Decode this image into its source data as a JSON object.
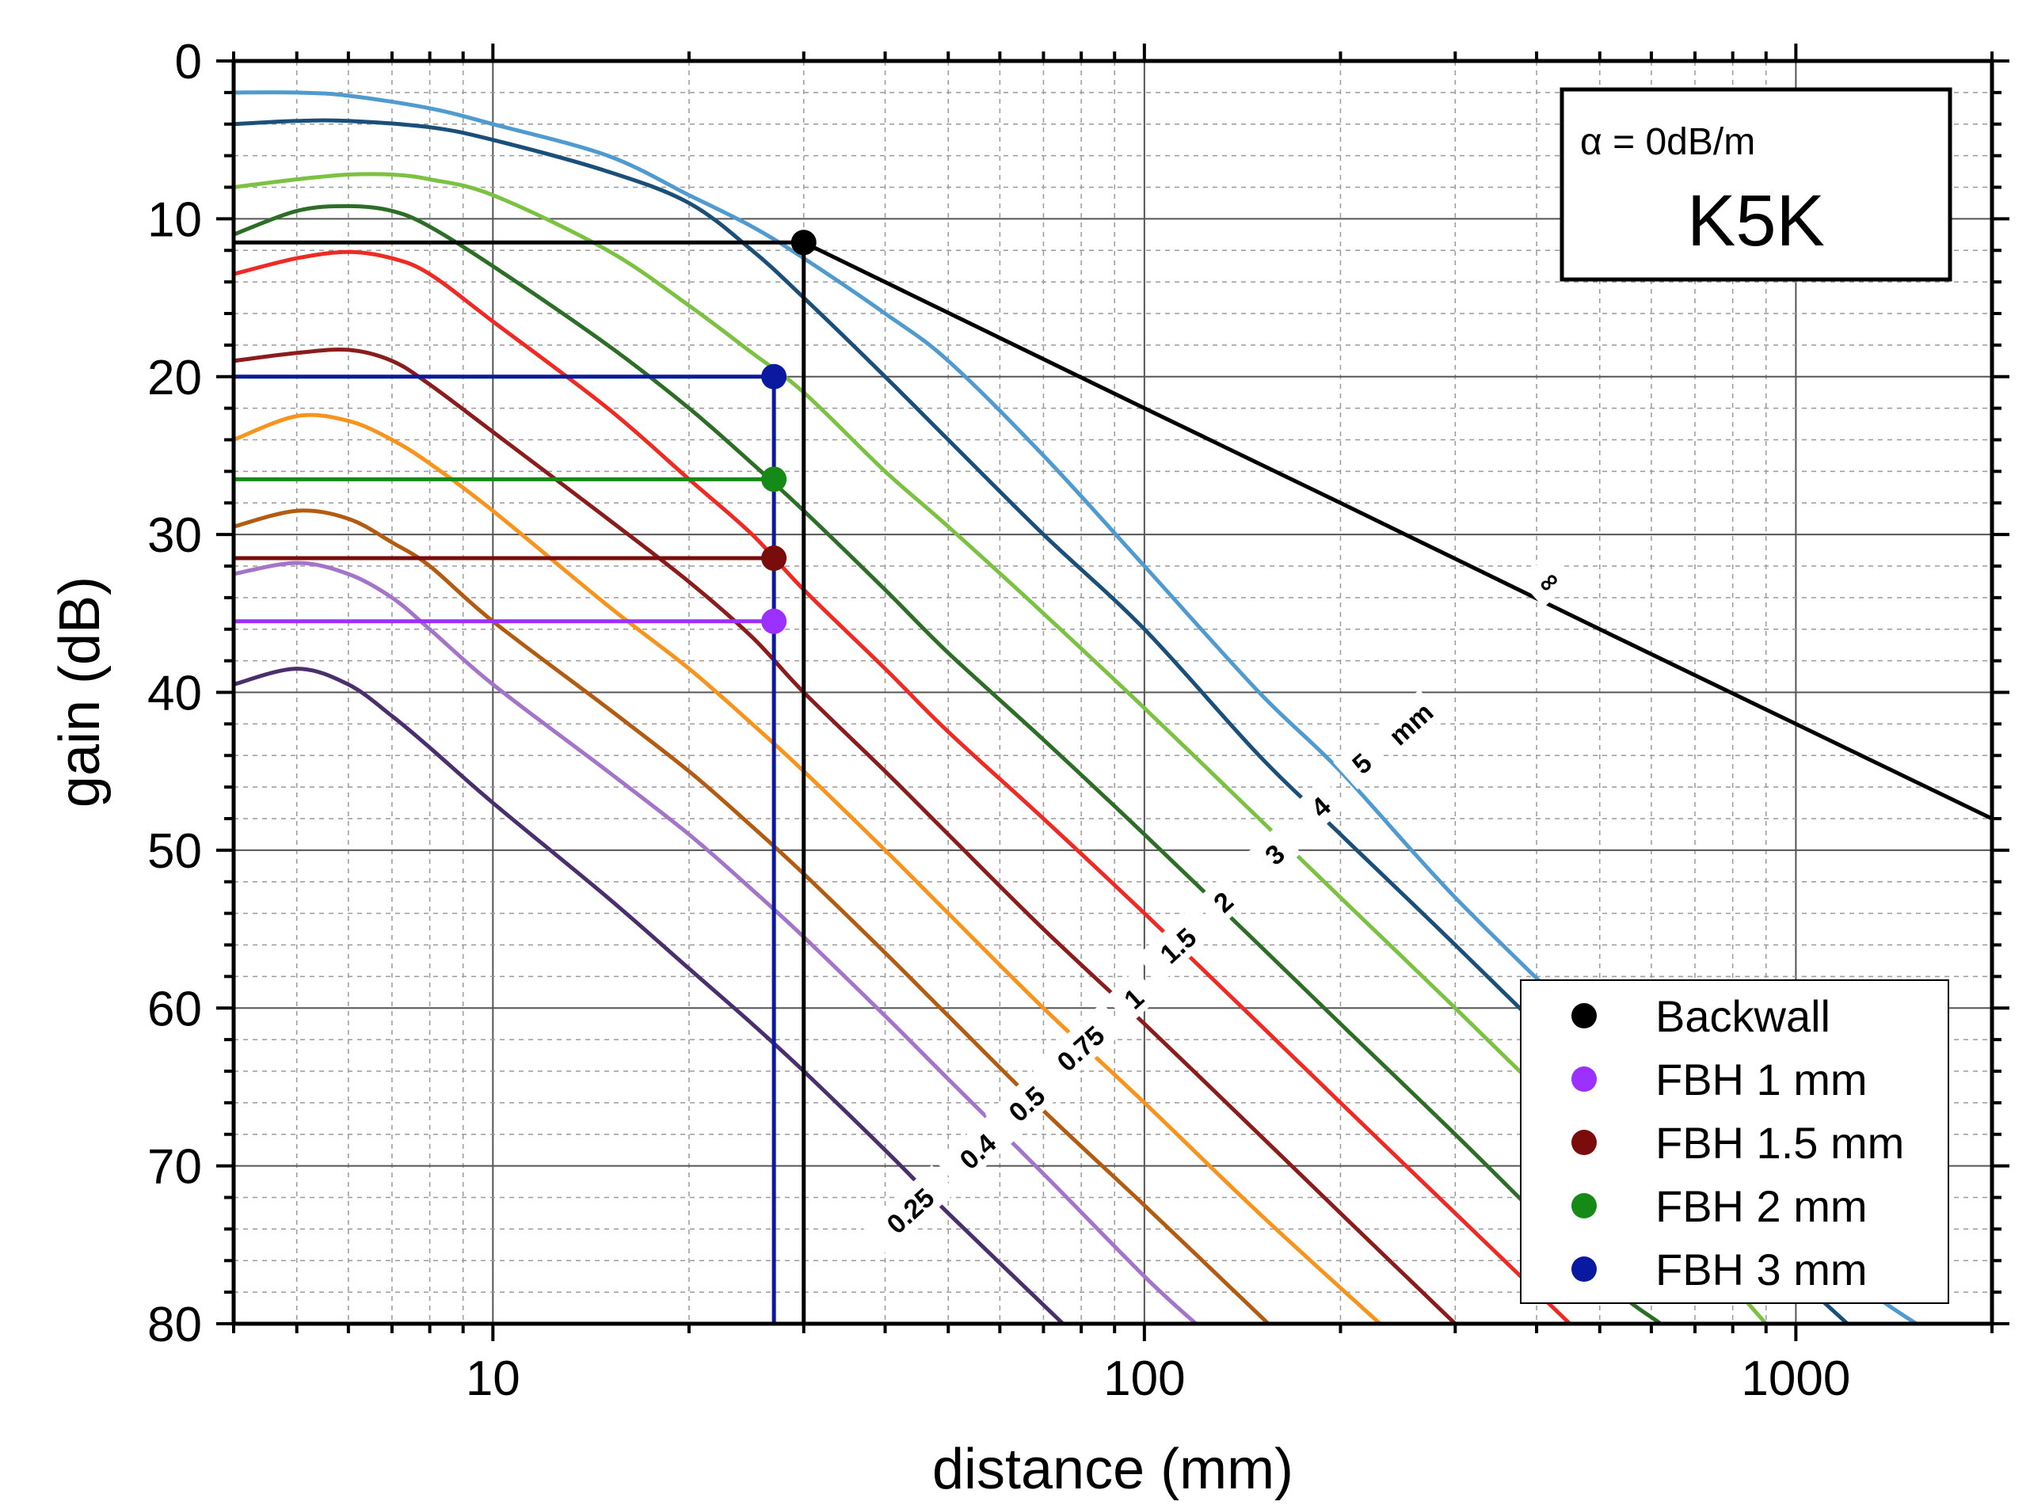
{
  "chart_data": {
    "type": "line",
    "title": "",
    "xlabel": "distance (mm)",
    "ylabel": "gain (dB)",
    "xscale": "log",
    "xlim": [
      4,
      2000
    ],
    "ylim": [
      80,
      0
    ],
    "grid": true,
    "xticks": [
      10,
      100,
      1000
    ],
    "xtick_labels": [
      "10",
      "100",
      "1000"
    ],
    "yticks": [
      0,
      10,
      20,
      30,
      40,
      50,
      60,
      70,
      80
    ],
    "ytick_labels": [
      "0",
      "10",
      "20",
      "30",
      "40",
      "50",
      "60",
      "70",
      "80"
    ],
    "annotation": {
      "alpha": "α = 0dB/m",
      "probe": "K5K"
    },
    "curve_labels": [
      "0.25",
      "0.4",
      "0.5",
      "0.75",
      "1",
      "1.5",
      "2",
      "3",
      "4",
      "5",
      "mm",
      "∞"
    ],
    "series": [
      {
        "name": "∞",
        "color": "#000000",
        "x": [
          30,
          100,
          200,
          500,
          1000,
          2000
        ],
        "y": [
          11.5,
          22,
          28,
          36,
          42,
          48
        ]
      },
      {
        "name": "5 mm",
        "color": "#4f9bd0",
        "x": [
          4,
          5,
          6,
          8,
          10,
          15,
          20,
          25,
          30,
          40,
          50,
          70,
          100,
          150,
          200,
          300,
          500,
          700,
          1000,
          1300,
          1600
        ],
        "y": [
          2,
          2,
          2.2,
          3,
          4,
          6,
          8.5,
          10.5,
          12.5,
          16,
          19,
          25,
          32,
          40,
          45,
          53,
          62,
          68,
          74,
          78,
          81
        ]
      },
      {
        "name": "4 mm",
        "color": "#1a4f7a",
        "x": [
          4,
          5,
          6,
          8,
          10,
          15,
          20,
          25,
          30,
          40,
          50,
          70,
          100,
          150,
          200,
          300,
          500,
          700,
          1000,
          1200
        ],
        "y": [
          4,
          3.8,
          3.8,
          4.2,
          5,
          7,
          9,
          12,
          15,
          20,
          24,
          30,
          36,
          44,
          49,
          56,
          65,
          71,
          77,
          80
        ]
      },
      {
        "name": "3 mm",
        "color": "#7cc242",
        "x": [
          4,
          5,
          6,
          7,
          8,
          10,
          15,
          20,
          25,
          30,
          40,
          50,
          70,
          100,
          150,
          200,
          300,
          500,
          700,
          900
        ],
        "y": [
          8,
          7.5,
          7.2,
          7.2,
          7.5,
          8.5,
          12,
          15.5,
          18.5,
          21,
          26,
          29.5,
          35,
          41,
          48,
          53,
          60,
          69,
          75,
          80
        ]
      },
      {
        "name": "2 mm",
        "color": "#2d6e26",
        "x": [
          4,
          5,
          6,
          7,
          8,
          10,
          15,
          20,
          25,
          30,
          40,
          50,
          70,
          100,
          150,
          200,
          300,
          500,
          620
        ],
        "y": [
          11,
          9.5,
          9.2,
          9.5,
          10.5,
          13,
          18,
          22,
          25.5,
          28.5,
          33.5,
          37.5,
          43,
          49,
          56,
          61,
          68,
          77,
          80
        ]
      },
      {
        "name": "1.5 mm",
        "color": "#ee2a24",
        "x": [
          4,
          5,
          6,
          7,
          8,
          10,
          15,
          20,
          25,
          30,
          40,
          50,
          70,
          100,
          150,
          200,
          300,
          450
        ],
        "y": [
          13.5,
          12.5,
          12.1,
          12.5,
          13.5,
          16.5,
          22,
          26.5,
          30,
          33.5,
          38.5,
          42.5,
          48,
          54,
          61,
          66,
          73,
          80
        ]
      },
      {
        "name": "1 mm",
        "color": "#8b1c1c",
        "x": [
          4,
          5,
          6,
          7,
          8,
          10,
          15,
          20,
          25,
          30,
          40,
          50,
          70,
          100,
          150,
          200,
          300
        ],
        "y": [
          19,
          18.5,
          18.3,
          19,
          20.5,
          23.5,
          29,
          33,
          36.5,
          40,
          45,
          49,
          55,
          61,
          68,
          73,
          80
        ]
      },
      {
        "name": "0.75 mm",
        "color": "#f7941d",
        "x": [
          4,
          5,
          6,
          7,
          8,
          10,
          15,
          20,
          25,
          30,
          40,
          50,
          70,
          100,
          150,
          230
        ],
        "y": [
          24,
          22.5,
          22.8,
          24,
          25.5,
          28.5,
          34.5,
          38.5,
          42,
          45,
          50,
          54,
          60,
          66,
          73,
          80
        ]
      },
      {
        "name": "0.5 mm",
        "color": "#b35c11",
        "x": [
          4,
          5,
          6,
          7,
          8,
          10,
          15,
          20,
          25,
          30,
          40,
          50,
          70,
          100,
          155
        ],
        "y": [
          29.5,
          28.5,
          29,
          30.5,
          32,
          35.5,
          41,
          45,
          48.5,
          51.5,
          56.5,
          60.5,
          66.5,
          72.5,
          80
        ]
      },
      {
        "name": "0.4 mm",
        "color": "#a374c8",
        "x": [
          4,
          5,
          6,
          7,
          8,
          10,
          15,
          20,
          25,
          30,
          40,
          50,
          70,
          100,
          120
        ],
        "y": [
          32.5,
          31.8,
          32.5,
          34,
          36,
          39.5,
          45,
          49,
          52.5,
          55.5,
          60.5,
          64.5,
          70.5,
          77,
          80
        ]
      },
      {
        "name": "0.25 mm",
        "color": "#4b2e6e",
        "x": [
          4,
          5,
          6,
          7,
          8,
          10,
          15,
          20,
          25,
          30,
          40,
          50,
          75
        ],
        "y": [
          39.5,
          38.5,
          39.5,
          41.5,
          43.5,
          47,
          53,
          57.5,
          61,
          64,
          69,
          73,
          80
        ]
      }
    ],
    "markers": [
      {
        "name": "Backwall",
        "color": "#000000",
        "x": 30,
        "y": 11.5,
        "hline": true,
        "vline": true
      },
      {
        "name": "FBH 3 mm",
        "color": "#0a1aa0",
        "x": 27,
        "y": 20,
        "hline": true,
        "vline": true
      },
      {
        "name": "FBH 2 mm",
        "color": "#168a16",
        "x": 27,
        "y": 26.5,
        "hline": true,
        "vline": false
      },
      {
        "name": "FBH 1.5 mm",
        "color": "#7a0c0c",
        "x": 27,
        "y": 31.5,
        "hline": true,
        "vline": false
      },
      {
        "name": "FBH 1 mm",
        "color": "#9b30ff",
        "x": 27,
        "y": 35.5,
        "hline": true,
        "vline": false
      }
    ],
    "legend": {
      "position": "bottom-right",
      "entries": [
        {
          "label": "Backwall",
          "color": "#000000"
        },
        {
          "label": "FBH 1 mm",
          "color": "#9b30ff"
        },
        {
          "label": "FBH 1.5 mm",
          "color": "#7a0c0c"
        },
        {
          "label": "FBH 2 mm",
          "color": "#168a16"
        },
        {
          "label": "FBH 3 mm",
          "color": "#0a1aa0"
        }
      ]
    }
  }
}
